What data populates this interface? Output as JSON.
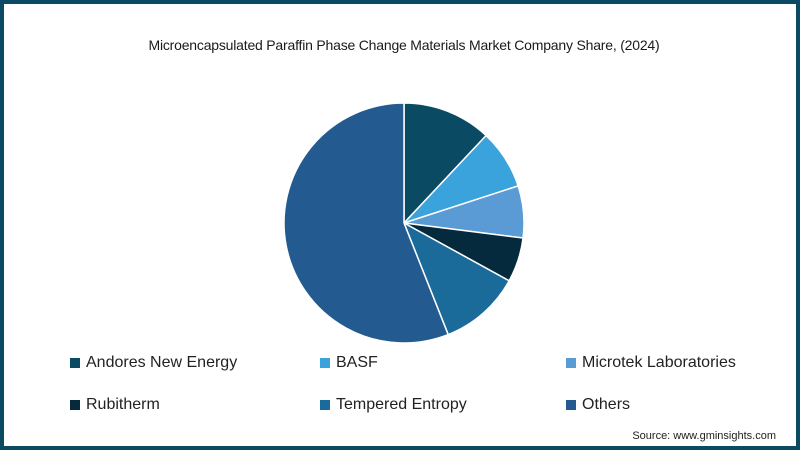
{
  "chart_data": {
    "type": "pie",
    "title": "Microencapsulated Paraffin Phase Change Materials Market Company Share, (2024)",
    "categories": [
      "Andores New Energy",
      "BASF",
      "Microtek Laboratories",
      "Rubitherm",
      "Tempered Entropy",
      "Others"
    ],
    "values": [
      12,
      8,
      7,
      6,
      11,
      56
    ],
    "unit": "%",
    "colors": [
      "#0b4a63",
      "#3aa3dc",
      "#5b9bd5",
      "#062a3d",
      "#1a6a9a",
      "#235a8f"
    ],
    "start_angle": "top, clockwise",
    "legend_position": "bottom",
    "source": "Source: www.gminsights.com"
  },
  "title": "Microencapsulated Paraffin Phase Change Materials Market Company Share, (2024)",
  "legend": [
    {
      "label": "Andores New Energy",
      "color": "#0b4a63"
    },
    {
      "label": "BASF",
      "color": "#3aa3dc"
    },
    {
      "label": "Microtek Laboratories",
      "color": "#5b9bd5"
    },
    {
      "label": "Rubitherm",
      "color": "#062a3d"
    },
    {
      "label": "Tempered Entropy",
      "color": "#1a6a9a"
    },
    {
      "label": "Others",
      "color": "#235a8f"
    }
  ],
  "source": "Source: www.gminsights.com",
  "frame_color": "#0b4a63"
}
